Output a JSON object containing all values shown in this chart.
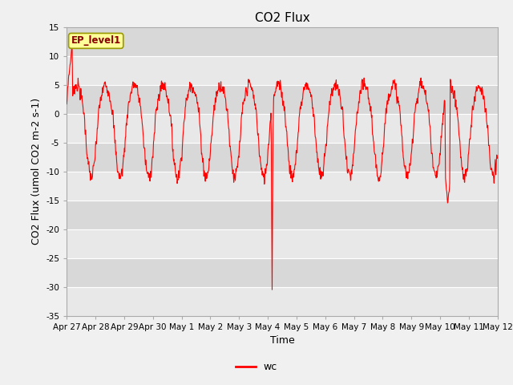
{
  "title": "CO2 Flux",
  "ylabel": "CO2 Flux (umol CO2 m-2 s-1)",
  "xlabel": "Time",
  "ylim": [
    -35,
    15
  ],
  "yticks": [
    15,
    10,
    5,
    0,
    -5,
    -10,
    -15,
    -20,
    -25,
    -30,
    -35
  ],
  "line_color": "#FF0000",
  "line_width": 0.8,
  "legend_label": "wc",
  "ep_label": "EP_level1",
  "ep_box_color": "#FFFF99",
  "ep_box_edge": "#999900",
  "title_fontsize": 11,
  "axis_label_fontsize": 9,
  "tick_fontsize": 7.5,
  "n_days": 15,
  "x_labels": [
    "Apr 27",
    "Apr 28",
    "Apr 29",
    "Apr 30",
    "May 1",
    "May 2",
    "May 3",
    "May 4",
    "May 5",
    "May 6",
    "May 7",
    "May 8",
    "May 9",
    "May 10",
    "May 11",
    "May 12"
  ],
  "stripe_colors": [
    "#D8D8D8",
    "#E8E8E8"
  ],
  "fig_bg": "#F0F0F0"
}
